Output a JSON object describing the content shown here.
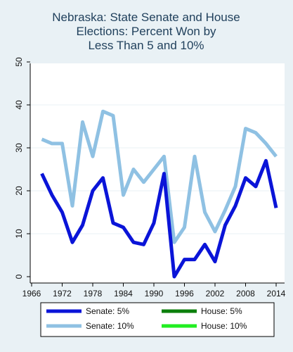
{
  "chart_data": {
    "type": "line",
    "title": [
      "Nebraska: State Senate and House",
      "Elections: Percent Won by",
      "Less Than 5 and 10%"
    ],
    "xlabel": "",
    "ylabel": "",
    "xlim": [
      1966,
      2014
    ],
    "ylim": [
      0,
      50
    ],
    "xticks": [
      1966,
      1972,
      1978,
      1984,
      1990,
      1996,
      2002,
      2008,
      2014
    ],
    "yticks": [
      0,
      10,
      20,
      30,
      40,
      50
    ],
    "grid": "horizontal",
    "legend_position": "bottom",
    "series": [
      {
        "name": "Senate: 10%",
        "color": "#8fc1e3",
        "x": [
          1968,
          1970,
          1972,
          1974,
          1976,
          1978,
          1980,
          1982,
          1984,
          1986,
          1988,
          1990,
          1992,
          1994,
          1996,
          1998,
          2000,
          2002,
          2004,
          2006,
          2008,
          2010,
          2012,
          2014
        ],
        "values": [
          32,
          31,
          31,
          16.5,
          36,
          28,
          38.5,
          37.5,
          19,
          25,
          22,
          25,
          28,
          8,
          11.5,
          28,
          15,
          10.5,
          15.5,
          21,
          34.5,
          33.5,
          31,
          28
        ]
      },
      {
        "name": "Senate: 5%",
        "color": "#0a14d8",
        "x": [
          1968,
          1970,
          1972,
          1974,
          1976,
          1978,
          1980,
          1982,
          1984,
          1986,
          1988,
          1990,
          1992,
          1994,
          1996,
          1998,
          2000,
          2002,
          2004,
          2006,
          2008,
          2010,
          2012,
          2014
        ],
        "values": [
          24,
          19,
          15,
          8,
          12,
          20,
          23,
          12.5,
          11.5,
          8,
          7.5,
          12.5,
          24,
          0,
          4,
          4,
          7.5,
          3.5,
          12,
          16.5,
          23,
          21,
          27,
          16
        ]
      },
      {
        "name": "House: 5%",
        "color": "#0b7f0b",
        "x": [],
        "values": []
      },
      {
        "name": "House: 10%",
        "color": "#22ee22",
        "x": [],
        "values": []
      }
    ],
    "legend": [
      {
        "label": "Senate: 5%",
        "color": "#0a14d8"
      },
      {
        "label": "House: 5%",
        "color": "#0b7f0b"
      },
      {
        "label": "Senate: 10%",
        "color": "#8fc1e3"
      },
      {
        "label": "House: 10%",
        "color": "#22ee22"
      }
    ]
  }
}
